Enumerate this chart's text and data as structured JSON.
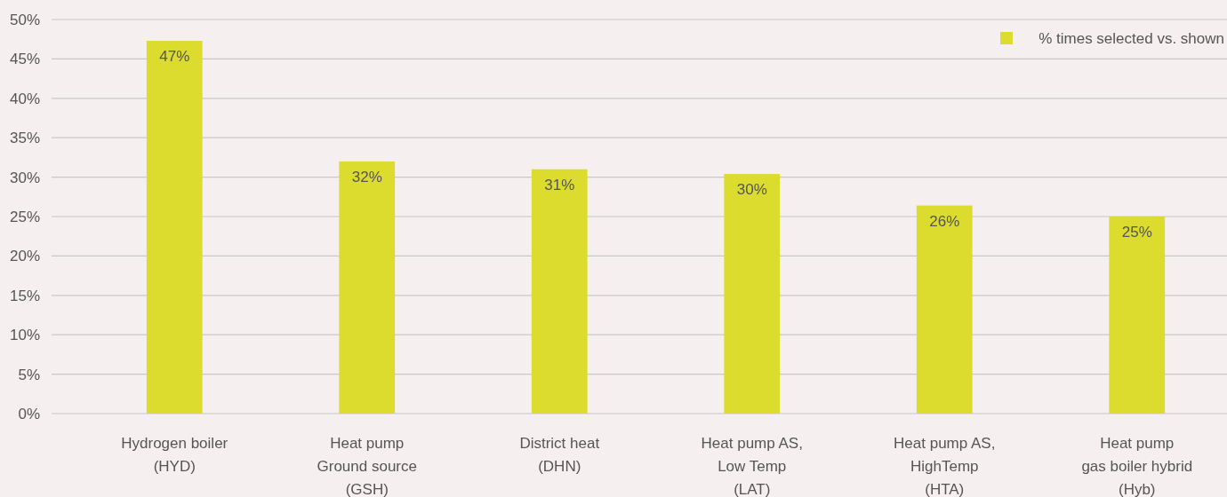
{
  "chart_data": {
    "type": "bar",
    "categories": [
      "Hydrogen boiler\n(HYD)",
      "Heat pump\nGround source\n(GSH)",
      "District heat\n(DHN)",
      "Heat pump AS,\nLow Temp\n(LAT)",
      "Heat pump AS,\nHighTemp\n(HTA)",
      "Heat pump\ngas boiler hybrid\n(Hyb)"
    ],
    "series": [
      {
        "name": "% times selected vs. shown",
        "color": "#dcdc2e",
        "values": [
          47.3,
          32,
          31,
          30.4,
          26.4,
          25
        ],
        "value_labels": [
          "47%",
          "32%",
          "31%",
          "30%",
          "26%",
          "25%"
        ]
      }
    ],
    "ylim": [
      0,
      50
    ],
    "yticks": [
      {
        "value": 0,
        "label": "0%"
      },
      {
        "value": 5,
        "label": "5%"
      },
      {
        "value": 10,
        "label": "10%"
      },
      {
        "value": 15,
        "label": "15%"
      },
      {
        "value": 20,
        "label": "20%"
      },
      {
        "value": 25,
        "label": "25%"
      },
      {
        "value": 30,
        "label": "30%"
      },
      {
        "value": 35,
        "label": "35%"
      },
      {
        "value": 40,
        "label": "40%"
      },
      {
        "value": 45,
        "label": "45%"
      },
      {
        "value": 50,
        "label": "50%"
      }
    ],
    "grid": "y",
    "legend": "top right"
  }
}
